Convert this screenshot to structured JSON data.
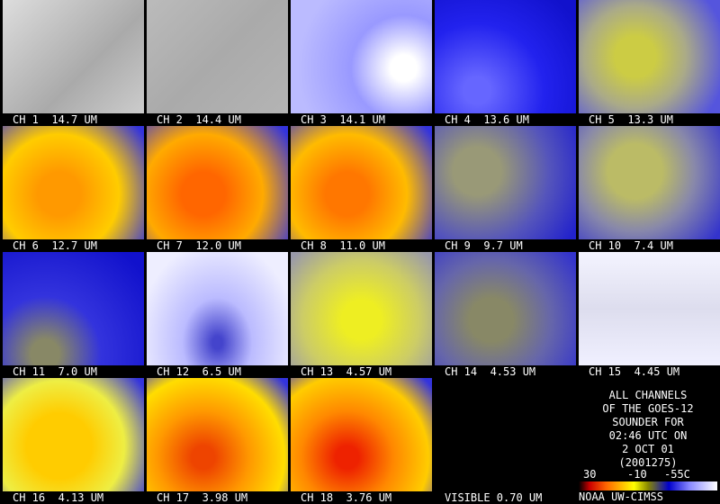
{
  "panels": [
    {
      "label": "CH 1  14.7 UM"
    },
    {
      "label": "CH 2  14.4 UM"
    },
    {
      "label": "CH 3  14.1 UM"
    },
    {
      "label": "CH 4  13.6 UM"
    },
    {
      "label": "CH 5  13.3 UM"
    },
    {
      "label": "CH 6  12.7 UM"
    },
    {
      "label": "CH 7  12.0 UM"
    },
    {
      "label": "CH 8  11.0 UM"
    },
    {
      "label": "CH 9  9.7 UM"
    },
    {
      "label": "CH 10  7.4 UM"
    },
    {
      "label": "CH 11  7.0 UM"
    },
    {
      "label": "CH 12  6.5 UM"
    },
    {
      "label": "CH 13  4.57 UM"
    },
    {
      "label": "CH 14  4.53 UM"
    },
    {
      "label": "CH 15  4.45 UM"
    },
    {
      "label": "CH 16  4.13 UM"
    },
    {
      "label": "CH 17  3.98 UM"
    },
    {
      "label": "CH 18  3.76 UM"
    },
    {
      "label": "VISIBLE 0.70 UM"
    }
  ],
  "info": {
    "lines": [
      "ALL CHANNELS",
      "OF THE GOES-12",
      "SOUNDER FOR",
      "02:46 UTC ON",
      "2 OCT 01",
      "(2001275)"
    ],
    "scale_labels": [
      "30",
      "-10",
      "-55C"
    ],
    "credit": "NOAA UW-CIMSS"
  }
}
